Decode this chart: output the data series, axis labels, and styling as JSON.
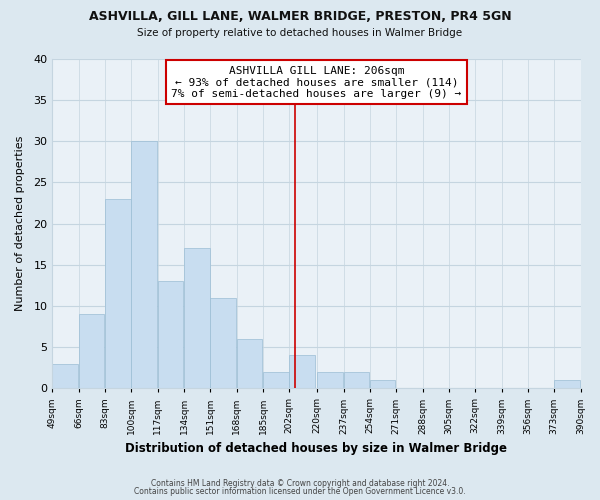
{
  "title": "ASHVILLA, GILL LANE, WALMER BRIDGE, PRESTON, PR4 5GN",
  "subtitle": "Size of property relative to detached houses in Walmer Bridge",
  "xlabel": "Distribution of detached houses by size in Walmer Bridge",
  "ylabel": "Number of detached properties",
  "bins": [
    49,
    66,
    83,
    100,
    117,
    134,
    151,
    168,
    185,
    202,
    220,
    237,
    254,
    271,
    288,
    305,
    322,
    339,
    356,
    373,
    390
  ],
  "counts": [
    3,
    9,
    23,
    30,
    13,
    17,
    11,
    6,
    2,
    4,
    2,
    2,
    1,
    0,
    0,
    0,
    0,
    0,
    0,
    1
  ],
  "bar_color": "#c8ddf0",
  "bar_edge_color": "#9bbdd4",
  "vline_x": 206,
  "vline_color": "#cc0000",
  "annotation_title": "ASHVILLA GILL LANE: 206sqm",
  "annotation_line1": "← 93% of detached houses are smaller (114)",
  "annotation_line2": "7% of semi-detached houses are larger (9) →",
  "annotation_box_color": "#ffffff",
  "annotation_box_edge": "#cc0000",
  "ylim": [
    0,
    40
  ],
  "yticks": [
    0,
    5,
    10,
    15,
    20,
    25,
    30,
    35,
    40
  ],
  "background_color": "#dce8f0",
  "plot_bg_color": "#eaf1f7",
  "grid_color": "#c5d5e0",
  "footer1": "Contains HM Land Registry data © Crown copyright and database right 2024.",
  "footer2": "Contains public sector information licensed under the Open Government Licence v3.0."
}
